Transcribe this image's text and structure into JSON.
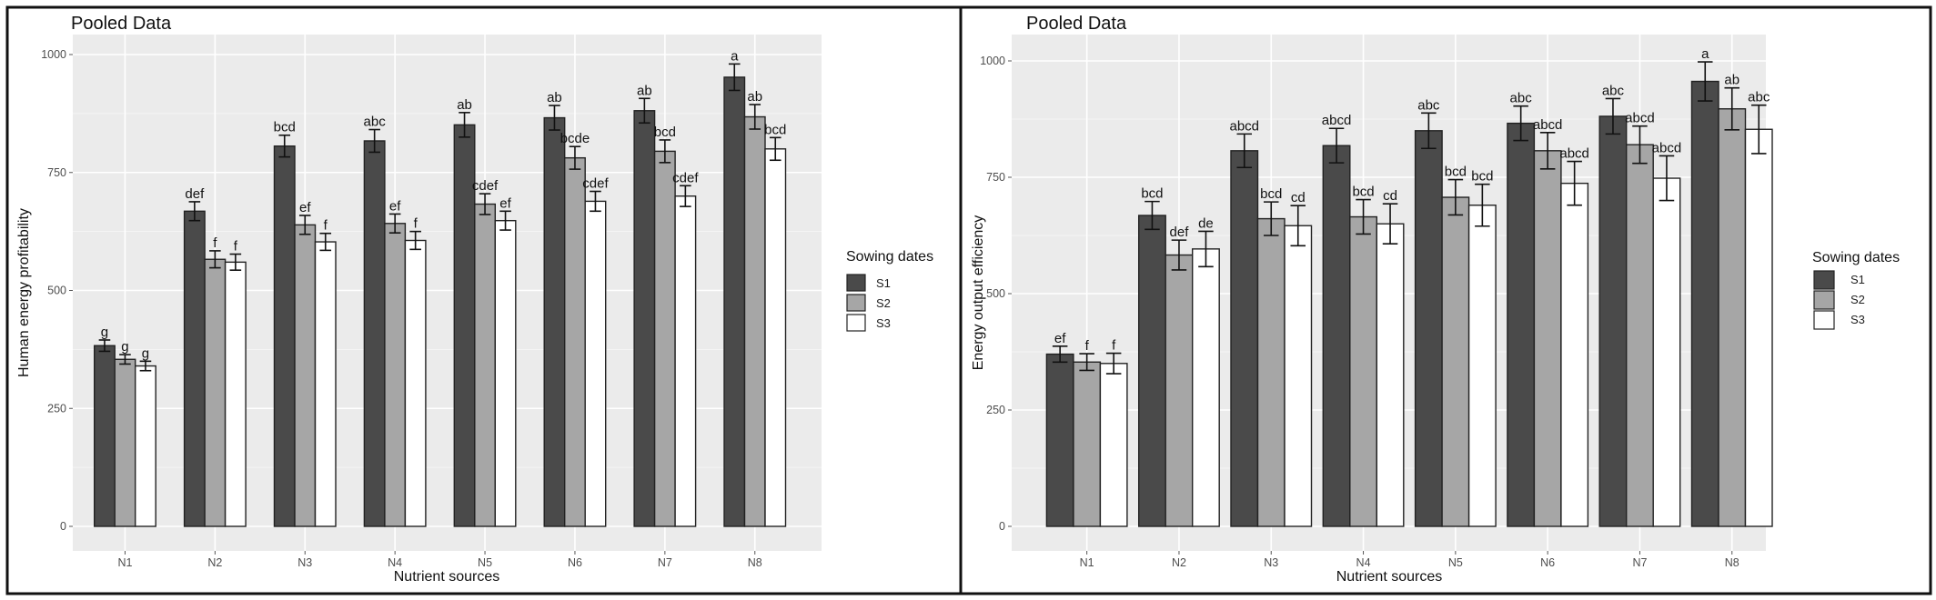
{
  "colors": {
    "S1": "#4a4a4a",
    "S2": "#a6a6a6",
    "S3": "#ffffff",
    "panel_bg": "#ebebeb"
  },
  "chart_data": [
    {
      "type": "bar",
      "title": "Pooled Data",
      "xlabel": "Nutrient sources",
      "ylabel": "Human energy profitability",
      "ylim": [
        0,
        1000
      ],
      "yticks": [
        0,
        250,
        500,
        750,
        1000
      ],
      "grid": true,
      "legend_title": "Sowing dates",
      "legend_position": "right",
      "categories": [
        "N1",
        "N2",
        "N3",
        "N4",
        "N5",
        "N6",
        "N7",
        "N8"
      ],
      "series": [
        {
          "name": "S1",
          "values": [
            383,
            668,
            806,
            817,
            851,
            866,
            881,
            952
          ],
          "errors": [
            12,
            20,
            23,
            24,
            26,
            26,
            26,
            28
          ],
          "letters": [
            "g",
            "def",
            "bcd",
            "abc",
            "ab",
            "ab",
            "ab",
            "a"
          ]
        },
        {
          "name": "S2",
          "values": [
            354,
            566,
            639,
            642,
            683,
            781,
            795,
            868
          ],
          "errors": [
            10,
            18,
            20,
            20,
            22,
            24,
            24,
            26
          ],
          "letters": [
            "g",
            "f",
            "ef",
            "ef",
            "cdef",
            "bcde",
            "bcd",
            "ab"
          ]
        },
        {
          "name": "S3",
          "values": [
            340,
            560,
            603,
            606,
            648,
            689,
            700,
            800
          ],
          "errors": [
            10,
            17,
            18,
            19,
            20,
            21,
            22,
            24
          ],
          "letters": [
            "g",
            "f",
            "f",
            "f",
            "ef",
            "cdef",
            "cdef",
            "bcd"
          ]
        }
      ]
    },
    {
      "type": "bar",
      "title": "Pooled Data",
      "xlabel": "Nutrient sources",
      "ylabel": "Energy output efficiency",
      "ylim": [
        0,
        1000
      ],
      "yticks": [
        0,
        250,
        500,
        750,
        1000
      ],
      "grid": true,
      "legend_title": "Sowing dates",
      "legend_position": "right",
      "categories": [
        "N1",
        "N2",
        "N3",
        "N4",
        "N5",
        "N6",
        "N7",
        "N8"
      ],
      "series": [
        {
          "name": "S1",
          "values": [
            370,
            668,
            807,
            818,
            850,
            866,
            881,
            956
          ],
          "errors": [
            17,
            30,
            36,
            37,
            38,
            37,
            38,
            42
          ],
          "letters": [
            "ef",
            "bcd",
            "abcd",
            "abcd",
            "abc",
            "abc",
            "abc",
            "a"
          ]
        },
        {
          "name": "S2",
          "values": [
            353,
            583,
            661,
            665,
            707,
            807,
            820,
            897
          ],
          "errors": [
            18,
            32,
            36,
            37,
            38,
            39,
            40,
            45
          ],
          "letters": [
            "f",
            "def",
            "bcd",
            "bcd",
            "bcd",
            "abcd",
            "abcd",
            "ab"
          ]
        },
        {
          "name": "S3",
          "values": [
            350,
            596,
            646,
            650,
            690,
            737,
            748,
            853
          ],
          "errors": [
            22,
            38,
            43,
            43,
            45,
            47,
            48,
            52
          ],
          "letters": [
            "f",
            "de",
            "cd",
            "cd",
            "bcd",
            "abcd",
            "abcd",
            "abc"
          ]
        }
      ]
    }
  ]
}
